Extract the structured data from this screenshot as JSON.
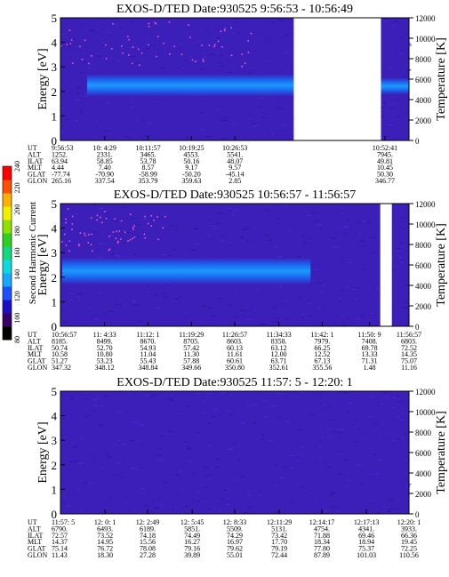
{
  "colorbar": {
    "label": "Second Harmonic Current",
    "ticks": [
      "80",
      "100",
      "120",
      "140",
      "160",
      "180",
      "200",
      "220",
      "240"
    ],
    "colors": [
      "#000000",
      "#3a006a",
      "#1a10c8",
      "#1e50ff",
      "#16a8ff",
      "#10d8e0",
      "#10d880",
      "#30d020",
      "#90e000",
      "#f0f000",
      "#ffb000",
      "#ff5000",
      "#ff0000"
    ]
  },
  "palette": {
    "background_blue": "#3b1fb8",
    "band_blue": "#1a66f0",
    "band_core": "#1aa0ff",
    "noise_pink": "#ff60c0"
  },
  "chart_data": [
    {
      "type": "heatmap",
      "title": "EXOS-D/TED   Date:930525  9:56:53 - 10:56:49",
      "ylabel": "Energy [eV]",
      "y2label": "Temperature [K]",
      "ylim": [
        0,
        5
      ],
      "yticks": [
        "0",
        "1",
        "2",
        "3",
        "4",
        "5"
      ],
      "y2lim": [
        0,
        12000
      ],
      "y2ticks": [
        "0",
        "2000",
        "4000",
        "6000",
        "8000",
        "10000",
        "12000"
      ],
      "x_start": "9:56:53",
      "x_end": "10:56:49",
      "data_gaps": [
        [
          "10:37:00",
          "10:52:00"
        ]
      ],
      "band_energy_eV": [
        1.8,
        2.7
      ],
      "row_labels": [
        "UT",
        "ALT",
        "ILAT",
        "MLT",
        "GLAT",
        "GLON"
      ],
      "columns": [
        {
          "time": "9:56:53",
          "values": [
            "9:56:53",
            "1252.",
            "63.94",
            "4.44",
            "-77.74",
            "265.16"
          ]
        },
        {
          "time": "10: 4:29",
          "values": [
            "10: 4:29",
            "2331.",
            "58.85",
            "7.40",
            "-70.90",
            "337.54"
          ]
        },
        {
          "time": "10:11:57",
          "values": [
            "10:11:57",
            "3465.",
            "53.78",
            "8.57",
            "-58.99",
            "353.79"
          ]
        },
        {
          "time": "10:19:25",
          "values": [
            "10:19:25",
            "4553.",
            "50.16",
            "9.17",
            "-50.20",
            "359.63"
          ]
        },
        {
          "time": "10:26:53",
          "values": [
            "10:26:53",
            "5541.",
            "48.07",
            "9.57",
            "-45.14",
            "2.85"
          ]
        },
        {
          "time": "10:52:41",
          "values": [
            "10:52:41",
            "7945.",
            "49.81",
            "10.45",
            "50.30",
            "346.77"
          ]
        }
      ]
    },
    {
      "type": "heatmap",
      "title": "EXOS-D/TED   Date:930525  10:56:57 - 11:56:57",
      "ylabel": "Energy [eV]",
      "y2label": "Temperature [K]",
      "ylim": [
        0,
        5
      ],
      "yticks": [
        "0",
        "1",
        "2",
        "3",
        "4",
        "5"
      ],
      "y2lim": [
        0,
        12000
      ],
      "y2ticks": [
        "0",
        "2000",
        "4000",
        "6000",
        "8000",
        "10000",
        "12000"
      ],
      "x_start": "10:56:57",
      "x_end": "11:56:57",
      "data_gaps": [
        [
          "11:52:00",
          "11:54:00"
        ]
      ],
      "band_energy_eV": [
        1.7,
        2.8
      ],
      "row_labels": [
        "UT",
        "ALT",
        "ILAT",
        "MLT",
        "GLAT",
        "GLON"
      ],
      "columns": [
        {
          "time": "10:56:57",
          "values": [
            "10:56:57",
            "8185.",
            "50.74",
            "10.58",
            "51.27",
            "347.32"
          ]
        },
        {
          "time": "11: 4:33",
          "values": [
            "11: 4:33",
            "8499.",
            "52.70",
            "10.80",
            "53.23",
            "348.12"
          ]
        },
        {
          "time": "11:12: 1",
          "values": [
            "11:12: 1",
            "8670.",
            "54.93",
            "11.04",
            "55.43",
            "348.84"
          ]
        },
        {
          "time": "11:19:29",
          "values": [
            "11:19:29",
            "8705.",
            "57.42",
            "11.30",
            "57.88",
            "349.66"
          ]
        },
        {
          "time": "11:26:57",
          "values": [
            "11:26:57",
            "8603.",
            "60.13",
            "11.61",
            "60.61",
            "350.80"
          ]
        },
        {
          "time": "11:34:33",
          "values": [
            "11:34:33",
            "8358.",
            "63.12",
            "12.00",
            "63.71",
            "352.61"
          ]
        },
        {
          "time": "11:42: 1",
          "values": [
            "11:42: 1",
            "7979.",
            "66.25",
            "12.52",
            "67.13",
            "355.56"
          ]
        },
        {
          "time": "11:50: 9",
          "values": [
            "11:50: 9",
            "7408.",
            "69.78",
            "13.33",
            "71.31",
            "1.48"
          ]
        },
        {
          "time": "11:56:57",
          "values": [
            "11:56:57",
            "6803.",
            "72.52",
            "14.35",
            "75.07",
            "11.16"
          ]
        }
      ]
    },
    {
      "type": "heatmap",
      "title": "EXOS-D/TED   Date:930525  11:57: 5 - 12:20: 1",
      "ylabel": "Energy [eV]",
      "y2label": "Temperature [K]",
      "ylim": [
        0,
        5
      ],
      "yticks": [
        "0",
        "1",
        "2",
        "3",
        "4",
        "5"
      ],
      "y2lim": [
        0,
        12000
      ],
      "y2ticks": [
        "0",
        "2000",
        "4000",
        "6000",
        "8000",
        "10000",
        "12000"
      ],
      "x_start": "11:57: 5",
      "x_end": "12:20: 1",
      "data_gaps": [],
      "band_energy_eV": null,
      "row_labels": [
        "UT",
        "ALT",
        "ILAT",
        "MLT",
        "GLAT",
        "GLON"
      ],
      "columns": [
        {
          "time": "11:57: 5",
          "values": [
            "11:57: 5",
            "6790.",
            "72.57",
            "14.37",
            "75.14",
            "11.43"
          ]
        },
        {
          "time": "12: 0: 1",
          "values": [
            "12: 0: 1",
            "6493.",
            "73.52",
            "14.95",
            "76.72",
            "18.30"
          ]
        },
        {
          "time": "12: 2:49",
          "values": [
            "12: 2:49",
            "6189.",
            "74.18",
            "15.56",
            "78.08",
            "27.28"
          ]
        },
        {
          "time": "12: 5:45",
          "values": [
            "12: 5:45",
            "5851.",
            "74.49",
            "16.27",
            "79.16",
            "39.89"
          ]
        },
        {
          "time": "12: 8:33",
          "values": [
            "12: 8:33",
            "5509.",
            "74.29",
            "16.97",
            "79.62",
            "55.01"
          ]
        },
        {
          "time": "12:11:29",
          "values": [
            "12:11:29",
            "5131.",
            "73.42",
            "17.70",
            "79.19",
            "72.44"
          ]
        },
        {
          "time": "12:14:17",
          "values": [
            "12:14:17",
            "4754.",
            "71.88",
            "18.34",
            "77.80",
            "87.89"
          ]
        },
        {
          "time": "12:17:13",
          "values": [
            "12:17:13",
            "4341.",
            "69.46",
            "18.94",
            "75.37",
            "101.03"
          ]
        },
        {
          "time": "12:20: 1",
          "values": [
            "12:20: 1",
            "3933.",
            "66.36",
            "19.45",
            "72.25",
            "110.56"
          ]
        }
      ]
    }
  ]
}
